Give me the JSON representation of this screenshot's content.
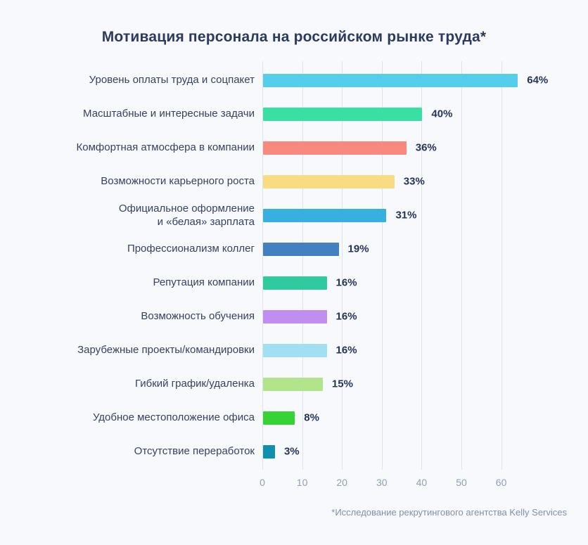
{
  "title": "Мотивация персонала на российском рынке труда*",
  "footnote": "*Исследование рекрутингового агентства Kelly Services",
  "colors": {
    "background": "#F7F9FC",
    "title_text": "#2B3A5E",
    "category_text": "#35425F",
    "value_text": "#25345A",
    "gridline": "#DAE5EF",
    "axis_tick_text": "#8FA0B5",
    "footnote_text": "#8090A8"
  },
  "chart_data": {
    "type": "bar",
    "orientation": "horizontal",
    "title": "Мотивация персонала на российском рынке труда*",
    "xlabel": "",
    "ylabel": "",
    "unit": "%",
    "xlim": [
      0,
      70
    ],
    "x_ticks": [
      0,
      10,
      20,
      30,
      40,
      50,
      60
    ],
    "grid": "vertical-only",
    "legend": "none",
    "annotation": "*Исследование рекрутингового агентства Kelly Services",
    "categories": [
      "Уровень оплаты труда и соцпакет",
      "Масштабные и интересные задачи",
      "Комфортная атмосфера в компании",
      "Возможности карьерного роста",
      "Официальное оформление\nи «белая» зарплата",
      "Профессионализм коллег",
      "Репутация компании",
      "Возможность обучения",
      "Зарубежные проекты/командировки",
      "Гибкий график/удаленка",
      "Удобное местоположение офиса",
      "Отсутствие переработок"
    ],
    "values": [
      64,
      40,
      36,
      33,
      31,
      19,
      16,
      16,
      16,
      15,
      8,
      3
    ],
    "value_labels": [
      "64%",
      "40%",
      "36%",
      "33%",
      "31%",
      "19%",
      "16%",
      "16%",
      "16%",
      "15%",
      "8%",
      "3%"
    ],
    "bar_colors": [
      "#55CEEC",
      "#3ADFA4",
      "#F7897E",
      "#F9DC82",
      "#38B0DF",
      "#4280C2",
      "#2FCB9F",
      "#C08EF0",
      "#A2DFF3",
      "#B2E48C",
      "#35D335",
      "#1090AE"
    ]
  }
}
